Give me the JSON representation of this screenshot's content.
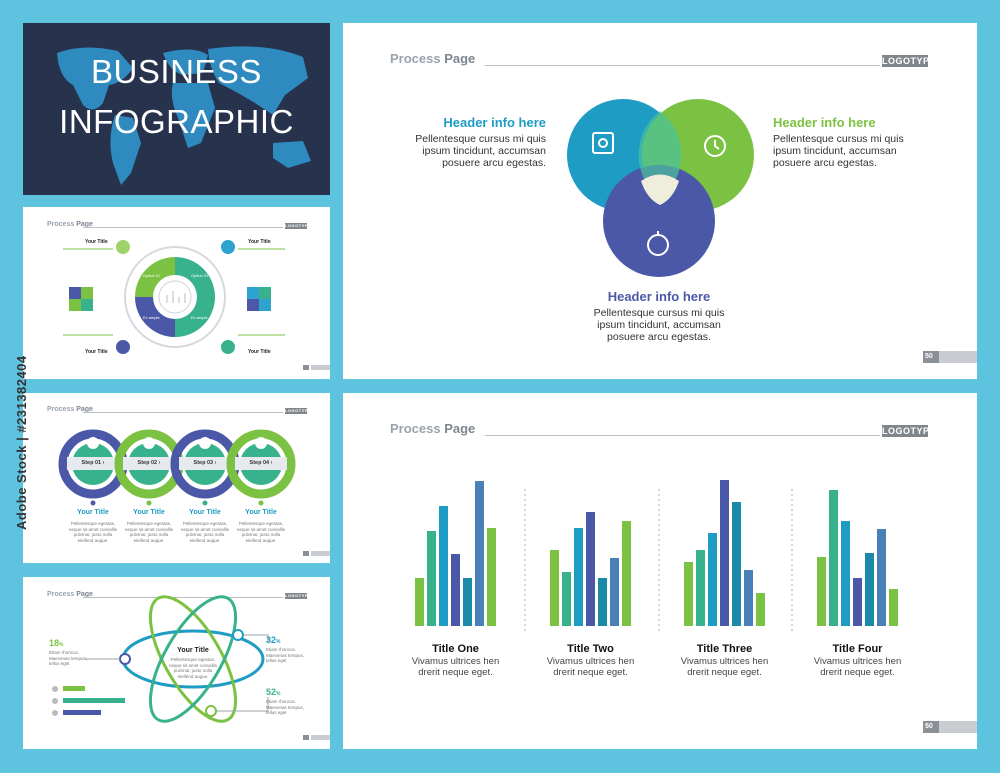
{
  "hero": {
    "line1": "BUSINESS",
    "line2": "INFOGRAPHIC"
  },
  "common": {
    "process": "Process",
    "page": "Page",
    "logotype": "LOGOTYPE",
    "page_number": "50"
  },
  "watermark": "Adobe Stock | #231382404",
  "venn": {
    "left": {
      "header": "Header info here",
      "body": [
        "Pellentesque cursus mi quis",
        "ipsum tincidunt, accumsan",
        "posuere arcu egestas."
      ]
    },
    "right": {
      "header": "Header info here",
      "body": [
        "Pellentesque cursus mi quis",
        "ipsum tincidunt, accumsan",
        "posuere arcu egestas."
      ]
    },
    "bottom": {
      "header": "Header info here",
      "body": [
        "Pellentesque cursus mi quis",
        "ipsum tincidunt, accumsan",
        "posuere arcu egestas."
      ]
    },
    "colors": {
      "left": "#1f9cc4",
      "right": "#7cc242",
      "bottom": "#4b58a8"
    }
  },
  "puzzle": {
    "left_top": "Your Title",
    "left_bottom": "Your Title",
    "right_top": "Your Title",
    "right_bottom": "Your Title",
    "segments": [
      "Option 01",
      "Option 02",
      "Ex ample",
      "Ex ample"
    ]
  },
  "steps": {
    "items": [
      {
        "label": "Step 01",
        "title": "Your Title"
      },
      {
        "label": "Step 02",
        "title": "Your Title"
      },
      {
        "label": "Step 03",
        "title": "Your Title"
      },
      {
        "label": "Step 04",
        "title": "Your Title"
      }
    ],
    "desc": [
      "Pellentesque egestas,",
      "neque sit amet convallis",
      "pulvinar, justo nulla",
      "eleifend augue."
    ]
  },
  "orbit": {
    "center_title": "Your Title",
    "center_desc": [
      "Pellentesque egestas,",
      "neque sit amet convallis",
      "pulvinar, justo nulla",
      "eleifend augue."
    ],
    "left": {
      "value": "18",
      "unit": "%",
      "desc": [
        "Etiam rhoncus.",
        "Maecenas tempus,",
        "tellus eget"
      ]
    },
    "right_top": {
      "value": "32",
      "unit": "%",
      "desc": [
        "Etiam rhoncus.",
        "Maecenas tempus,",
        "tellus eget"
      ]
    },
    "right_bottom": {
      "value": "52",
      "unit": "%",
      "desc": [
        "Etiam rhoncus.",
        "Maecenas tempus,",
        "tellus eget"
      ]
    },
    "bars": [
      0.18,
      0.52,
      0.32
    ]
  },
  "chart_data": {
    "type": "bar",
    "groups": [
      {
        "title": "Title One",
        "desc": [
          "Vivamus ultrices hen",
          "drerit neque eget."
        ],
        "values": [
          48,
          95,
          120,
          72,
          48,
          145,
          98
        ]
      },
      {
        "title": "Title Two",
        "desc": [
          "Vivamus ultrices hen",
          "drerit neque eget."
        ],
        "values": [
          76,
          54,
          98,
          114,
          48,
          68,
          105
        ]
      },
      {
        "title": "Title Three",
        "desc": [
          "Vivamus ultrices hen",
          "drerit neque eget."
        ],
        "values": [
          64,
          76,
          93,
          146,
          124,
          56,
          33
        ]
      },
      {
        "title": "Title Four",
        "desc": [
          "Vivamus ultrices hen",
          "drerit neque eget."
        ],
        "values": [
          69,
          136,
          105,
          48,
          73,
          97,
          37
        ]
      }
    ],
    "colors": [
      "#7cc242",
      "#37b28d",
      "#1f9cc4",
      "#4b58a8",
      "#1a8aa8",
      "#4a80b8",
      "#7cc242"
    ]
  }
}
